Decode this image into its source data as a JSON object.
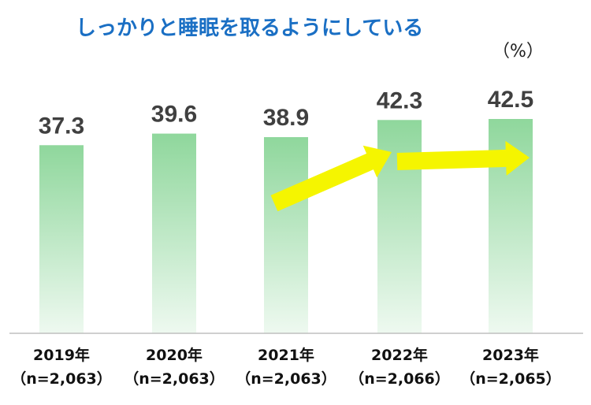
{
  "chart_data": {
    "type": "bar",
    "title": "しっかりと睡眠を取るようにしている",
    "unit": "（%）",
    "categories": [
      "2019年",
      "2020年",
      "2021年",
      "2022年",
      "2023年"
    ],
    "sample_sizes": [
      "（n=2,063）",
      "（n=2,063）",
      "（n=2,063）",
      "（n=2,066）",
      "（n=2,065）"
    ],
    "values": [
      37.3,
      39.6,
      38.9,
      42.3,
      42.5
    ],
    "value_labels": [
      "37.3",
      "39.6",
      "38.9",
      "42.3",
      "42.5"
    ],
    "ylim": [
      0,
      50
    ],
    "grid": false,
    "legend": "none",
    "colors": {
      "bar_top": "#8fd79c",
      "bar_bottom": "#eef9f0",
      "arrow": "#f5f500",
      "title": "#1a6fc4",
      "axis": "#bfbfbf"
    },
    "annotations": [
      "arrow-2021-to-2022",
      "arrow-2022-to-2023"
    ]
  }
}
